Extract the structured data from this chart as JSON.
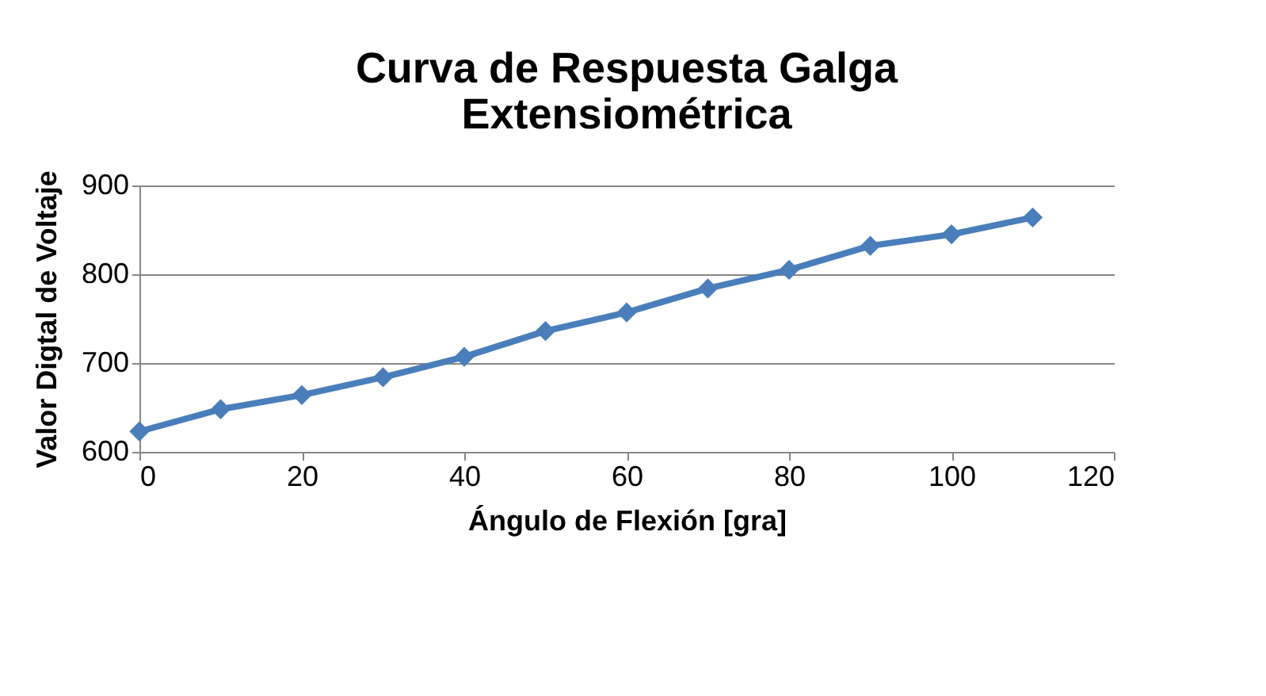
{
  "chart_data": {
    "type": "line",
    "title": "Curva de Respuesta Galga Extensiométrica",
    "xlabel": "Ángulo de Flexión [gra]",
    "ylabel": "Valor Digtal de Voltaje",
    "x": [
      0,
      10,
      20,
      30,
      40,
      50,
      60,
      70,
      80,
      90,
      100,
      110
    ],
    "series": [
      {
        "color": "#4a7ebb",
        "values": [
          623,
          648,
          664,
          684,
          707,
          736,
          757,
          784,
          805,
          832,
          845,
          864
        ]
      }
    ],
    "xlim": [
      0,
      120
    ],
    "xticks": [
      0,
      20,
      40,
      60,
      80,
      100,
      120
    ],
    "ylim": [
      600,
      900
    ],
    "yticks": [
      600,
      700,
      800,
      900
    ],
    "grid": "y",
    "marker": "diamond",
    "line_style": "solid"
  }
}
